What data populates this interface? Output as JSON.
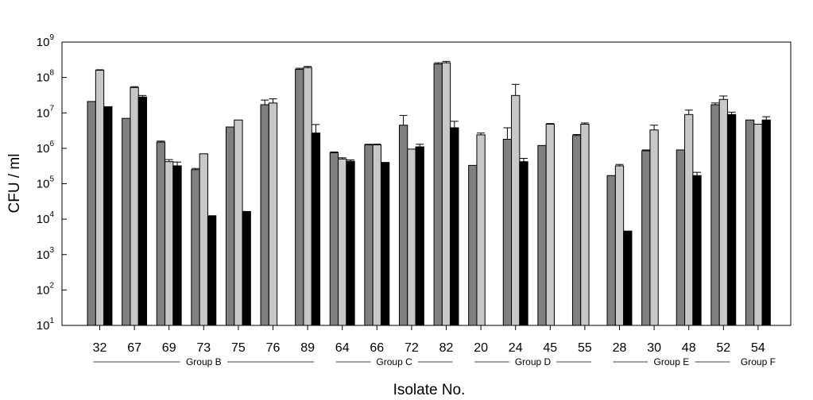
{
  "chart_data": {
    "type": "bar",
    "scale": "log",
    "xlabel": "Isolate No.",
    "ylabel": "CFU / ml",
    "ylim": [
      10,
      1000000000
    ],
    "y_ticks": [
      {
        "base": "10",
        "exp": "1",
        "value": 10
      },
      {
        "base": "10",
        "exp": "2",
        "value": 100
      },
      {
        "base": "10",
        "exp": "3",
        "value": 1000
      },
      {
        "base": "10",
        "exp": "4",
        "value": 10000
      },
      {
        "base": "10",
        "exp": "5",
        "value": 100000
      },
      {
        "base": "10",
        "exp": "6",
        "value": 1000000
      },
      {
        "base": "10",
        "exp": "7",
        "value": 10000000
      },
      {
        "base": "10",
        "exp": "8",
        "value": 100000000
      },
      {
        "base": "10",
        "exp": "9",
        "value": 1000000000
      }
    ],
    "categories": [
      "32",
      "67",
      "69",
      "73",
      "75",
      "76",
      "89",
      "64",
      "66",
      "72",
      "82",
      "20",
      "24",
      "45",
      "55",
      "28",
      "30",
      "48",
      "52",
      "54"
    ],
    "groups": [
      {
        "label": "Group B",
        "from": 0,
        "to": 6
      },
      {
        "label": "Group C",
        "from": 7,
        "to": 10
      },
      {
        "label": "Group D",
        "from": 11,
        "to": 14
      },
      {
        "label": "Group E",
        "from": 15,
        "to": 18
      },
      {
        "label": "Group F",
        "from": 19,
        "to": 19
      }
    ],
    "grid": false,
    "legend": "none",
    "series": [
      {
        "color": "#808080",
        "values": [
          21000000,
          7000000,
          1500000,
          250000,
          4000000,
          17000000,
          170000000,
          750000,
          1250000,
          4500000,
          240000000,
          330000,
          1800000,
          1200000,
          2300000,
          170000,
          850000,
          900000,
          17000000,
          6300000
        ],
        "errors": [
          0,
          0,
          100000,
          20000,
          0,
          6000000,
          12000000,
          40000,
          50000,
          4000000,
          20000000,
          0,
          2000000,
          0,
          150000,
          0,
          50000,
          0,
          2000000,
          0
        ]
      },
      {
        "color": "#c8c8c8",
        "values": [
          160000000,
          52000000,
          420000,
          700000,
          6300000,
          19000000,
          190000000,
          500000,
          1250000,
          950000,
          260000000,
          2400000,
          31000000,
          4800000,
          4800000,
          320000,
          3300000,
          9000000,
          24000000,
          4800000
        ],
        "errors": [
          5000000,
          3000000,
          60000,
          0,
          0,
          6000000,
          15000000,
          40000,
          60000,
          0,
          25000000,
          300000,
          33000000,
          200000,
          400000,
          30000,
          1200000,
          3000000,
          6000000,
          0
        ],
        "missing": []
      },
      {
        "color": "#000000",
        "values": [
          15000000,
          28000000,
          320000,
          12500,
          16500,
          null,
          2700000,
          430000,
          400000,
          1100000,
          3800000,
          null,
          420000,
          null,
          null,
          4600,
          null,
          170000,
          9000000,
          6300000
        ],
        "errors": [
          0,
          3000000,
          90000,
          0,
          0,
          0,
          2000000,
          40000,
          0,
          200000,
          2000000,
          0,
          100000,
          0,
          0,
          0,
          0,
          40000,
          1500000,
          1500000
        ]
      }
    ]
  }
}
